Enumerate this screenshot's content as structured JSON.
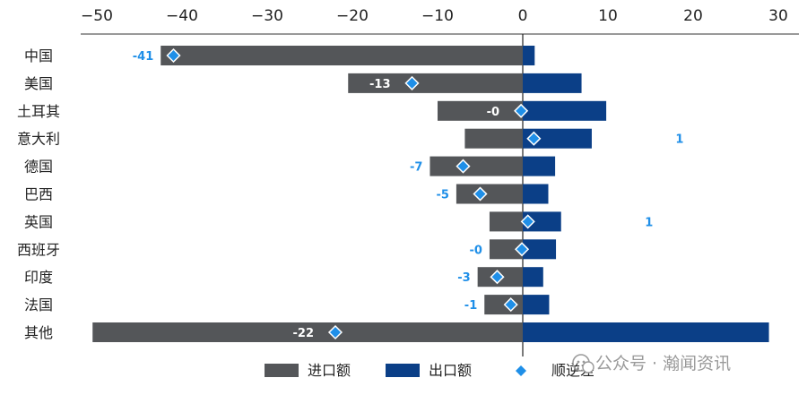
{
  "chart_data": {
    "type": "bar",
    "orientation": "horizontal",
    "categories": [
      "中国",
      "美国",
      "土耳其",
      "意大利",
      "德国",
      "巴西",
      "英国",
      "西班牙",
      "印度",
      "法国",
      "其他"
    ],
    "series": [
      {
        "name": "进口额",
        "kind": "bar",
        "color": "#545659",
        "values": [
          -42.5,
          -20.5,
          -10.0,
          -6.8,
          -10.9,
          -7.8,
          -3.9,
          -3.9,
          -5.3,
          -4.5,
          -50.5
        ]
      },
      {
        "name": "出口额",
        "kind": "bar",
        "color": "#0b3f87",
        "values": [
          1.4,
          6.9,
          9.8,
          8.1,
          3.8,
          3.0,
          4.5,
          3.9,
          2.4,
          3.1,
          28.9
        ]
      },
      {
        "name": "顺逆差",
        "kind": "marker",
        "color": "#1f8fe8",
        "values": [
          -41,
          -13,
          -0.2,
          1.3,
          -7,
          -5,
          0.6,
          -0.1,
          -3,
          -1.4,
          -22
        ],
        "labels": [
          "-41",
          "-13",
          "-0",
          "1",
          "-7",
          "-5",
          "1",
          "-0",
          "-3",
          "-1",
          "-22"
        ]
      }
    ],
    "xlim": [
      -50,
      30
    ],
    "xticks": [
      -50,
      -40,
      -30,
      -20,
      -10,
      0,
      10,
      20,
      30
    ],
    "tick_labels": [
      "−50",
      "−40",
      "−30",
      "−20",
      "−10",
      "0",
      "10",
      "20",
      "30"
    ],
    "legend_position": "bottom"
  },
  "watermark": "公众号 · 瀚闻资讯"
}
